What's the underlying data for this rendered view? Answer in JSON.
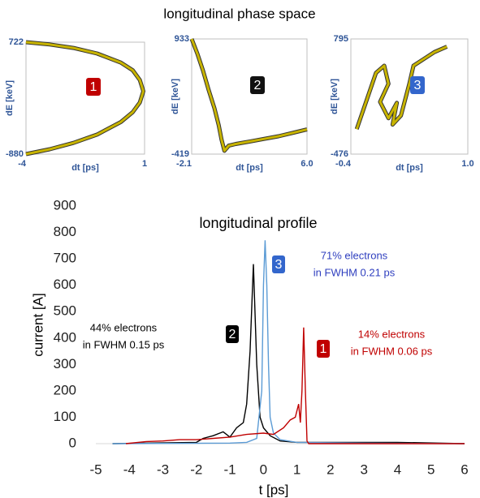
{
  "title": "longitudinal phase space",
  "chart_data": [
    {
      "type": "phase",
      "badge": "1",
      "badge_color": "#c00000",
      "xlabel": "dt [ps]",
      "ylabel": "dE [keV]",
      "xlim": [
        -4,
        1
      ],
      "ylim": [
        -880,
        722
      ],
      "xticks": [
        -4,
        1
      ],
      "yticks": [
        -880,
        722
      ],
      "series": [
        {
          "color": "#c8b400",
          "x": [
            -4,
            -3,
            -2,
            -1,
            0,
            0.5,
            0.8,
            0.95,
            0.8,
            0.5,
            0,
            -1,
            -2,
            -3,
            -4
          ],
          "values": [
            722,
            690,
            640,
            560,
            430,
            320,
            180,
            20,
            -140,
            -280,
            -420,
            -600,
            -720,
            -810,
            -880
          ]
        }
      ]
    },
    {
      "type": "phase",
      "badge": "2",
      "badge_color": "#111111",
      "xlabel": "dt [ps]",
      "ylabel": "dE [keV]",
      "xlim": [
        -2.1,
        6.0
      ],
      "ylim": [
        -419,
        933
      ],
      "xticks": [
        -2.1,
        {
          "value": 6.0,
          "label": "6.0"
        }
      ],
      "yticks": [
        -419,
        933
      ],
      "series": [
        {
          "color": "#c8b400",
          "x": [
            -2.1,
            -1.7,
            -1.3,
            -0.9,
            -0.5,
            -0.2,
            0,
            0.2,
            0.5,
            1,
            2,
            3,
            4,
            5,
            6.0
          ],
          "values": [
            933,
            760,
            560,
            330,
            120,
            -80,
            -250,
            -380,
            -320,
            -300,
            -270,
            -240,
            -210,
            -170,
            -130
          ]
        }
      ]
    },
    {
      "type": "phase",
      "badge": "3",
      "badge_color": "#3366cc",
      "xlabel": "dt [ps]",
      "ylabel": "dE [keV]",
      "xlim": [
        -0.4,
        {
          "value": 1.0,
          "label": "1.0"
        }
      ],
      "ylim": [
        -476,
        795
      ],
      "xticks": [
        -0.4,
        {
          "value": 1.0,
          "label": "1.0"
        }
      ],
      "yticks": [
        -476,
        795
      ],
      "series": [
        {
          "color": "#c8b400",
          "x": [
            -0.33,
            -0.2,
            -0.1,
            0,
            0.05,
            -0.05,
            0.05,
            0.15,
            0.1,
            0.2,
            0.3,
            0.35,
            0.45,
            0.6,
            0.75
          ],
          "values": [
            -200,
            150,
            420,
            500,
            300,
            100,
            -80,
            90,
            -150,
            -50,
            300,
            500,
            560,
            650,
            710
          ]
        }
      ]
    },
    {
      "type": "line",
      "title": "longitudinal profile",
      "xlabel": "t [ps]",
      "ylabel": "current [A]",
      "xlim": [
        -5,
        6
      ],
      "ylim": [
        0,
        900
      ],
      "xticks": [
        -5,
        -4,
        -3,
        -2,
        -1,
        0,
        1,
        2,
        3,
        4,
        5,
        6
      ],
      "yticks": [
        0,
        100,
        200,
        300,
        400,
        500,
        600,
        700,
        800,
        900
      ],
      "series": [
        {
          "name": "2",
          "color": "#000000",
          "note": [
            "44% electrons",
            "in FWHM 0.15 ps"
          ],
          "x": [
            -4.5,
            -2,
            -1.8,
            -1.5,
            -1.2,
            -1,
            -0.8,
            -0.6,
            -0.5,
            -0.4,
            -0.3,
            -0.2,
            -0.1,
            0,
            0.2,
            0.5,
            1,
            2,
            4,
            6
          ],
          "values": [
            0,
            5,
            20,
            30,
            45,
            25,
            60,
            80,
            150,
            350,
            680,
            300,
            100,
            60,
            30,
            10,
            5,
            5,
            5,
            0
          ]
        },
        {
          "name": "3",
          "color": "#5b9bd5",
          "note": [
            "71% electrons",
            "in FWHM 0.21 ps"
          ],
          "x": [
            -4.5,
            -1,
            -0.5,
            -0.2,
            -0.05,
            0,
            0.05,
            0.1,
            0.15,
            0.2,
            0.3,
            0.5,
            1,
            3,
            6
          ],
          "values": [
            0,
            2,
            5,
            20,
            200,
            600,
            770,
            600,
            300,
            100,
            40,
            15,
            5,
            2,
            0
          ]
        },
        {
          "name": "1",
          "color": "#c00000",
          "note": [
            "14% electrons",
            "in FWHM 0.06 ps"
          ],
          "x": [
            -4.1,
            -3.5,
            -3,
            -2.5,
            -2,
            -1.5,
            -1,
            -0.5,
            0,
            0.3,
            0.6,
            0.8,
            0.95,
            1.05,
            1.1,
            1.15,
            1.2,
            1.25,
            1.3,
            1.35,
            6
          ],
          "values": [
            0,
            8,
            10,
            15,
            15,
            20,
            25,
            35,
            40,
            35,
            60,
            90,
            100,
            150,
            80,
            200,
            440,
            200,
            10,
            0,
            0
          ]
        }
      ]
    }
  ]
}
